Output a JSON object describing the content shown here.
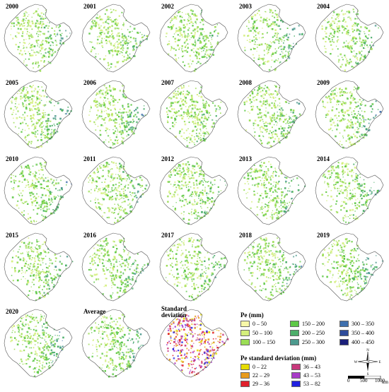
{
  "panels": [
    {
      "label": "2000",
      "intensity": 0.45,
      "std": false
    },
    {
      "label": "2001",
      "intensity": 0.4,
      "std": false
    },
    {
      "label": "2002",
      "intensity": 0.4,
      "std": false
    },
    {
      "label": "2003",
      "intensity": 0.6,
      "std": false
    },
    {
      "label": "2004",
      "intensity": 0.4,
      "std": false
    },
    {
      "label": "2005",
      "intensity": 0.65,
      "std": false
    },
    {
      "label": "2006",
      "intensity": 0.6,
      "std": false
    },
    {
      "label": "2007",
      "intensity": 0.3,
      "std": false
    },
    {
      "label": "2008",
      "intensity": 0.4,
      "std": false
    },
    {
      "label": "2009",
      "intensity": 0.65,
      "std": false
    },
    {
      "label": "2010",
      "intensity": 0.5,
      "std": false
    },
    {
      "label": "2011",
      "intensity": 0.45,
      "std": false
    },
    {
      "label": "2012",
      "intensity": 0.45,
      "std": false
    },
    {
      "label": "2013",
      "intensity": 0.65,
      "std": false
    },
    {
      "label": "2014",
      "intensity": 0.55,
      "std": false
    },
    {
      "label": "2015",
      "intensity": 0.5,
      "std": false
    },
    {
      "label": "2016",
      "intensity": 0.5,
      "std": false
    },
    {
      "label": "2017",
      "intensity": 0.45,
      "std": false
    },
    {
      "label": "2018",
      "intensity": 0.6,
      "std": false
    },
    {
      "label": "2019",
      "intensity": 0.8,
      "std": false
    },
    {
      "label": "2020",
      "intensity": 0.75,
      "std": false
    },
    {
      "label": "Average",
      "intensity": 0.6,
      "std": false
    },
    {
      "label": "Standard\ndeviation",
      "intensity": 0.5,
      "std": true
    }
  ],
  "pe_legend": {
    "title": "Pe (mm)",
    "items": [
      {
        "range": "0 – 50",
        "color": "#f7f7a8"
      },
      {
        "range": "50 – 100",
        "color": "#d4ef7c"
      },
      {
        "range": "100 – 150",
        "color": "#9bdd55"
      },
      {
        "range": "150 – 200",
        "color": "#5ec846"
      },
      {
        "range": "200 – 250",
        "color": "#4cae6a"
      },
      {
        "range": "250 – 300",
        "color": "#4d9a8e"
      },
      {
        "range": "300 – 350",
        "color": "#3f70ad"
      },
      {
        "range": "350 – 400",
        "color": "#2e4b9a"
      },
      {
        "range": "400 – 450",
        "color": "#1b1f7a"
      }
    ]
  },
  "sd_legend": {
    "title": "Pe standard deviation (mm)",
    "items": [
      {
        "range": "0 – 22",
        "color": "#e6dc00"
      },
      {
        "range": "22 – 29",
        "color": "#e89a1c"
      },
      {
        "range": "29 – 36",
        "color": "#e0202c"
      },
      {
        "range": "36 – 43",
        "color": "#c8387c"
      },
      {
        "range": "43 – 53",
        "color": "#a83cc8"
      },
      {
        "range": "53 – 82",
        "color": "#2020e0"
      }
    ]
  },
  "compass": {
    "n": "N",
    "s": "S",
    "e": "E",
    "w": "W"
  },
  "scale": {
    "zero": "0",
    "mid": "500",
    "max": "1000",
    "unit": "km"
  },
  "colors": {
    "outline": "#555555",
    "seed": 7
  }
}
